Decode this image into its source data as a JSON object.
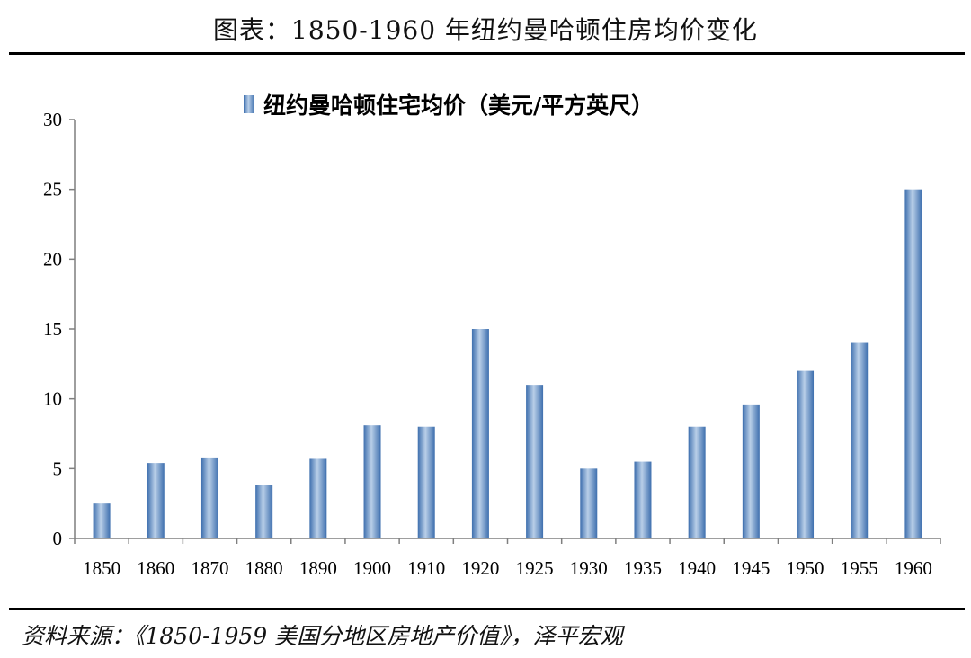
{
  "page": {
    "title": "图表：1850-1960 年纽约曼哈顿住房均价变化",
    "source": "资料来源：《1850-1959 美国分地区房地产价值》，泽平宏观"
  },
  "chart_data": {
    "type": "bar",
    "title": "",
    "xlabel": "",
    "ylabel": "",
    "ylim": [
      0,
      30
    ],
    "yticks": [
      0,
      5,
      10,
      15,
      20,
      25,
      30
    ],
    "grid": false,
    "legend_position": "top-center",
    "categories": [
      "1850",
      "1860",
      "1870",
      "1880",
      "1890",
      "1900",
      "1910",
      "1920",
      "1925",
      "1930",
      "1935",
      "1940",
      "1945",
      "1950",
      "1955",
      "1960"
    ],
    "series": [
      {
        "name": "纽约曼哈顿住宅均价（美元/平方英尺）",
        "color": "#4f81bd",
        "values": [
          2.5,
          5.4,
          5.8,
          3.8,
          5.7,
          8.1,
          8.0,
          15.0,
          11.0,
          5.0,
          5.5,
          8.0,
          9.6,
          12.0,
          14.0,
          25.0
        ]
      }
    ]
  }
}
